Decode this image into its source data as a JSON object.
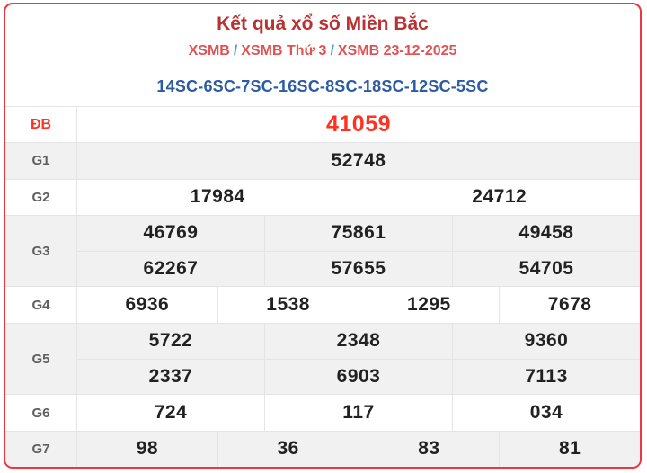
{
  "colors": {
    "card_border": "#ec3642",
    "title_red": "#b93132",
    "breadcrumb_red": "#e15253",
    "separator_blue": "#5b9bd5",
    "codes_blue": "#2b5ca3",
    "special_red": "#ff3222",
    "alt_row_bg": "#f1f1f1",
    "number_dark": "#212121"
  },
  "header": {
    "title": "Kết quả xổ số Miền Bắc",
    "breadcrumb": {
      "separator": "/",
      "items": [
        {
          "label": "XSMB"
        },
        {
          "label": "XSMB Thứ 3"
        },
        {
          "label": "XSMB 23-12-2025"
        }
      ]
    }
  },
  "special_codes": "14SC-6SC-7SC-16SC-8SC-18SC-12SC-5SC",
  "prize_table": {
    "rows": [
      {
        "label": "ĐB",
        "highlight": true,
        "lines": [
          [
            "41059"
          ]
        ]
      },
      {
        "label": "G1",
        "highlight": false,
        "lines": [
          [
            "52748"
          ]
        ]
      },
      {
        "label": "G2",
        "highlight": false,
        "lines": [
          [
            "17984",
            "24712"
          ]
        ]
      },
      {
        "label": "G3",
        "highlight": false,
        "lines": [
          [
            "46769",
            "75861",
            "49458"
          ],
          [
            "62267",
            "57655",
            "54705"
          ]
        ]
      },
      {
        "label": "G4",
        "highlight": false,
        "lines": [
          [
            "6936",
            "1538",
            "1295",
            "7678"
          ]
        ]
      },
      {
        "label": "G5",
        "highlight": false,
        "lines": [
          [
            "5722",
            "2348",
            "9360"
          ],
          [
            "2337",
            "6903",
            "7113"
          ]
        ]
      },
      {
        "label": "G6",
        "highlight": false,
        "lines": [
          [
            "724",
            "117",
            "034"
          ]
        ]
      },
      {
        "label": "G7",
        "highlight": false,
        "lines": [
          [
            "98",
            "36",
            "83",
            "81"
          ]
        ]
      }
    ]
  }
}
